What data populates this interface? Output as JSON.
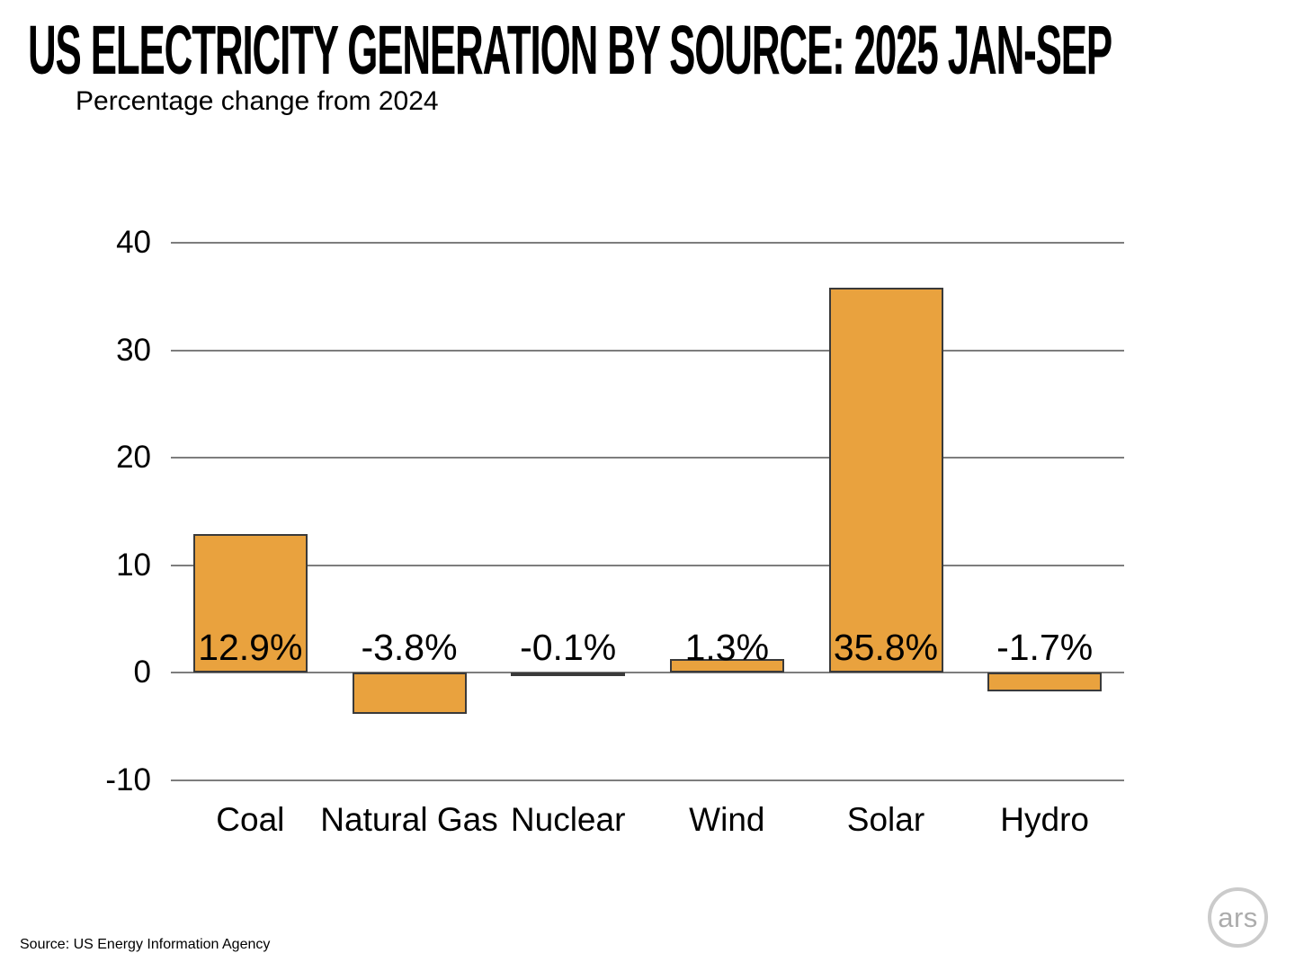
{
  "header": {
    "title": "US ELECTRICITY GENERATION BY SOURCE: 2025 JAN-SEP",
    "subtitle": "Percentage change from 2024"
  },
  "footer": {
    "source": "Source:  US Energy Information Agency",
    "logo_text": "ars"
  },
  "colors": {
    "bar_fill": "#E9A23E",
    "bar_border": "#3A3A3A",
    "gridline": "#7D7D7D",
    "text": "#000000",
    "logo_gray": "#ACACAC"
  },
  "chart_data": {
    "type": "bar",
    "categories": [
      "Coal",
      "Natural Gas",
      "Nuclear",
      "Wind",
      "Solar",
      "Hydro"
    ],
    "values": [
      12.9,
      -3.8,
      -0.1,
      1.3,
      35.8,
      -1.7
    ],
    "value_labels": [
      "12.9%",
      "-3.8%",
      "-0.1%",
      "1.3%",
      "35.8%",
      "-1.7%"
    ],
    "title": "US ELECTRICITY GENERATION BY SOURCE: 2025 JAN-SEP",
    "subtitle": "Percentage change from 2024",
    "xlabel": "",
    "ylabel": "",
    "ylim": [
      -10,
      40
    ],
    "yticks": [
      40,
      30,
      20,
      10,
      0,
      -10
    ],
    "grid": true,
    "legend": false
  }
}
